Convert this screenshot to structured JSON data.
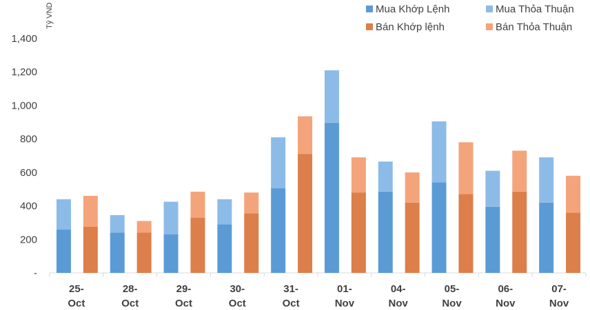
{
  "chart_data": {
    "type": "bar",
    "stacked": true,
    "unit_label": "Tỷ VND",
    "ylim": [
      0,
      1400
    ],
    "y_ticks": [
      {
        "value": 0,
        "label": "-"
      },
      {
        "value": 200,
        "label": "200"
      },
      {
        "value": 400,
        "label": "400"
      },
      {
        "value": 600,
        "label": "600"
      },
      {
        "value": 800,
        "label": "800"
      },
      {
        "value": 1000,
        "label": "1,000"
      },
      {
        "value": 1200,
        "label": "1,200"
      },
      {
        "value": 1400,
        "label": "1,400"
      }
    ],
    "groups": [
      {
        "line1": "25-",
        "line2": "Oct"
      },
      {
        "line1": "28-",
        "line2": "Oct"
      },
      {
        "line1": "29-",
        "line2": "Oct"
      },
      {
        "line1": "30-",
        "line2": "Oct"
      },
      {
        "line1": "31-",
        "line2": "Oct"
      },
      {
        "line1": "01-",
        "line2": "Nov"
      },
      {
        "line1": "04-",
        "line2": "Nov"
      },
      {
        "line1": "05-",
        "line2": "Nov"
      },
      {
        "line1": "06-",
        "line2": "Nov"
      },
      {
        "line1": "07-",
        "line2": "Nov"
      }
    ],
    "legend": [
      {
        "name": "Mua Khớp Lệnh",
        "color": "#5b9bd5"
      },
      {
        "name": "Mua Thỏa Thuận",
        "color": "#8dbbe7"
      },
      {
        "name": "Bán Khớp lệnh",
        "color": "#dc7f4a"
      },
      {
        "name": "Bán Thỏa Thuận",
        "color": "#f4a47a"
      }
    ],
    "buy": {
      "matched": [
        260,
        240,
        230,
        290,
        505,
        895,
        485,
        540,
        395,
        420
      ],
      "negotiated": [
        180,
        105,
        195,
        150,
        305,
        315,
        180,
        365,
        215,
        270
      ]
    },
    "sell": {
      "matched": [
        275,
        240,
        330,
        355,
        710,
        480,
        420,
        470,
        485,
        360
      ],
      "negotiated": [
        185,
        70,
        155,
        125,
        225,
        210,
        180,
        310,
        245,
        220
      ]
    },
    "legend_placement": "top-right",
    "grid": false
  }
}
